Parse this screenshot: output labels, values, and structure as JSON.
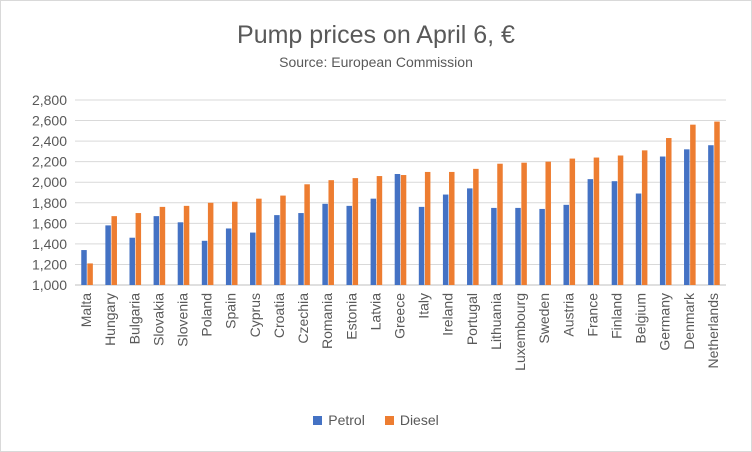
{
  "chart_data": {
    "type": "bar",
    "title": "Pump prices on April 6, €",
    "subtitle": "Source: European Commission",
    "xlabel": "",
    "ylabel": "",
    "ylim": [
      1000,
      2800
    ],
    "ytick_step": 200,
    "ytick_labels": [
      "1,000",
      "1,200",
      "1,400",
      "1,600",
      "1,800",
      "2,000",
      "2,200",
      "2,400",
      "2,600",
      "2,800"
    ],
    "legend_position": "bottom",
    "categories": [
      "Malta",
      "Hungary",
      "Bulgaria",
      "Slovakia",
      "Slovenia",
      "Poland",
      "Spain",
      "Cyprus",
      "Croatia",
      "Czechia",
      "Romania",
      "Estonia",
      "Latvia",
      "Greece",
      "Italy",
      "Ireland",
      "Portugal",
      "Lithuania",
      "Luxembourg",
      "Sweden",
      "Austria",
      "France",
      "Finland",
      "Belgium",
      "Germany",
      "Denmark",
      "Netherlands"
    ],
    "series": [
      {
        "name": "Petrol",
        "color": "#4472c4",
        "values": [
          1340,
          1580,
          1460,
          1670,
          1610,
          1430,
          1550,
          1510,
          1680,
          1700,
          1790,
          1770,
          1840,
          2080,
          1760,
          1880,
          1940,
          1750,
          1750,
          1740,
          1780,
          2030,
          2010,
          1890,
          2250,
          2320,
          2360
        ]
      },
      {
        "name": "Diesel",
        "color": "#ed7d31",
        "values": [
          1210,
          1670,
          1700,
          1760,
          1770,
          1800,
          1810,
          1840,
          1870,
          1980,
          2020,
          2040,
          2060,
          2070,
          2100,
          2100,
          2130,
          2180,
          2190,
          2200,
          2230,
          2240,
          2260,
          2310,
          2430,
          2560,
          2590
        ]
      }
    ]
  }
}
